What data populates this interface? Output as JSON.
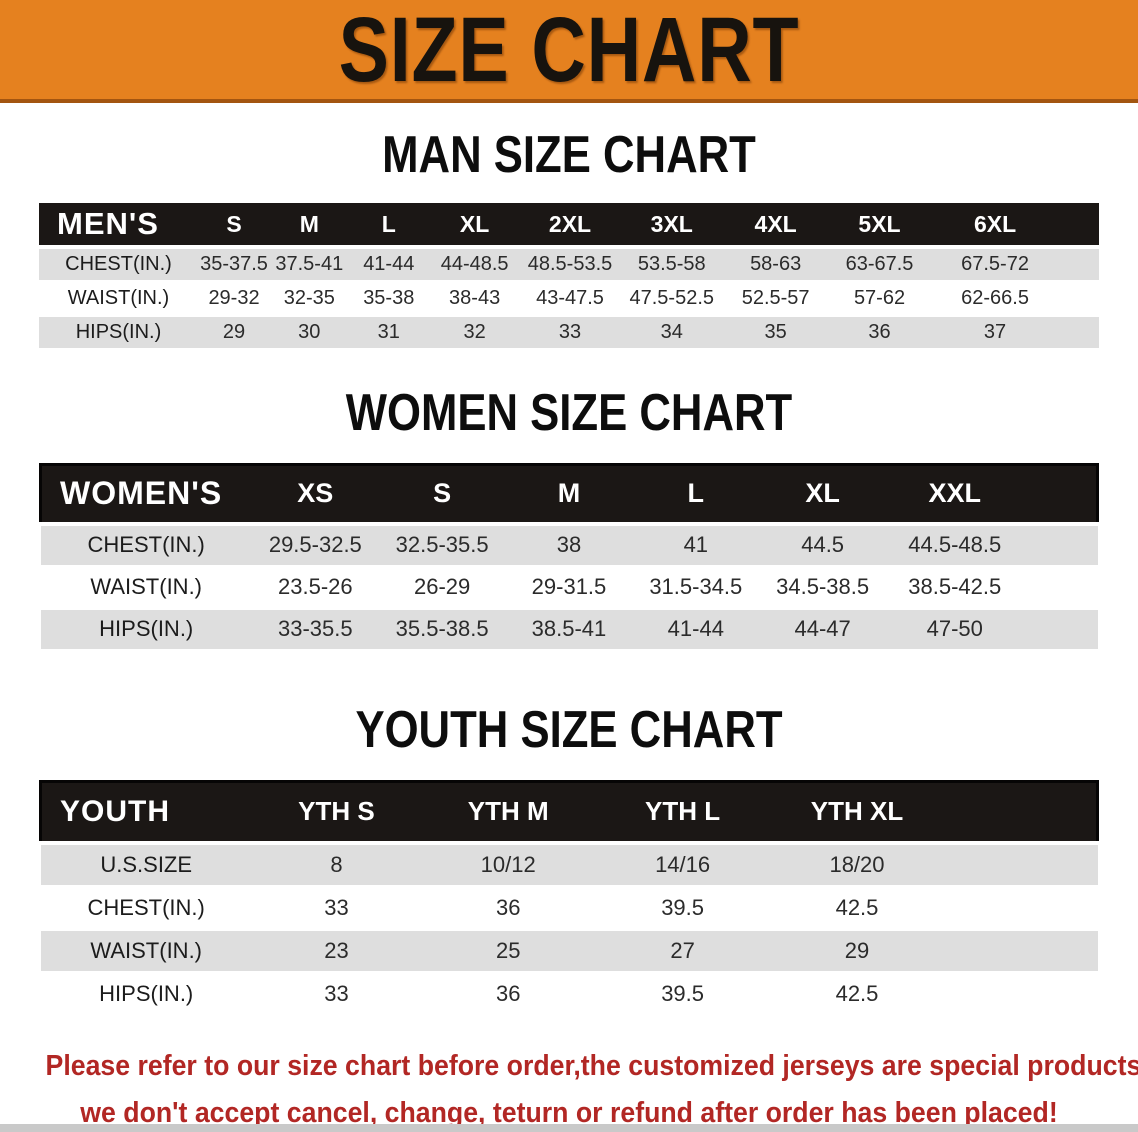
{
  "banner": {
    "title": "SIZE CHART"
  },
  "colors": {
    "banner_bg": "#E5811F",
    "banner_edge": "#A35510",
    "header_bg": "#1B1715",
    "row_alt": "#DEDEDE",
    "note_red": "#B22724"
  },
  "men": {
    "heading": "MAN SIZE CHART",
    "table": {
      "label": "MEN'S",
      "columns": [
        "S",
        "M",
        "L",
        "XL",
        "2XL",
        "3XL",
        "4XL",
        "5XL",
        "6XL"
      ],
      "rows": [
        {
          "label": "CHEST(IN.)",
          "values": [
            "35-37.5",
            "37.5-41",
            "41-44",
            "44-48.5",
            "48.5-53.5",
            "53.5-58",
            "58-63",
            "63-67.5",
            "67.5-72"
          ]
        },
        {
          "label": "WAIST(IN.)",
          "values": [
            "29-32",
            "32-35",
            "35-38",
            "38-43",
            "43-47.5",
            "47.5-52.5",
            "52.5-57",
            "57-62",
            "62-66.5"
          ]
        },
        {
          "label": "HIPS(IN.)",
          "values": [
            "29",
            "30",
            "31",
            "32",
            "33",
            "34",
            "35",
            "36",
            "37"
          ]
        }
      ]
    }
  },
  "women": {
    "heading": "WOMEN SIZE CHART",
    "table": {
      "label": "WOMEN'S",
      "columns": [
        "XS",
        "S",
        "M",
        "L",
        "XL",
        "XXL"
      ],
      "rows": [
        {
          "label": "CHEST(IN.)",
          "values": [
            "29.5-32.5",
            "32.5-35.5",
            "38",
            "41",
            "44.5",
            "44.5-48.5"
          ]
        },
        {
          "label": "WAIST(IN.)",
          "values": [
            "23.5-26",
            "26-29",
            "29-31.5",
            "31.5-34.5",
            "34.5-38.5",
            "38.5-42.5"
          ]
        },
        {
          "label": "HIPS(IN.)",
          "values": [
            "33-35.5",
            "35.5-38.5",
            "38.5-41",
            "41-44",
            "44-47",
            "47-50"
          ]
        }
      ]
    }
  },
  "youth": {
    "heading": "YOUTH SIZE CHART",
    "table": {
      "label": "YOUTH",
      "columns": [
        "YTH S",
        "YTH M",
        "YTH L",
        "YTH XL"
      ],
      "rows": [
        {
          "label": "U.S.SIZE",
          "values": [
            "8",
            "10/12",
            "14/16",
            "18/20"
          ]
        },
        {
          "label": "CHEST(IN.)",
          "values": [
            "33",
            "36",
            "39.5",
            "42.5"
          ]
        },
        {
          "label": "WAIST(IN.)",
          "values": [
            "23",
            "25",
            "27",
            "29"
          ]
        },
        {
          "label": "HIPS(IN.)",
          "values": [
            "33",
            "36",
            "39.5",
            "42.5"
          ]
        }
      ]
    }
  },
  "footer": {
    "line1": "Please refer to our size chart before order,the customized jerseys are special products,",
    "line2": "we don't accept cancel, change, teturn or refund after order has been placed!"
  }
}
